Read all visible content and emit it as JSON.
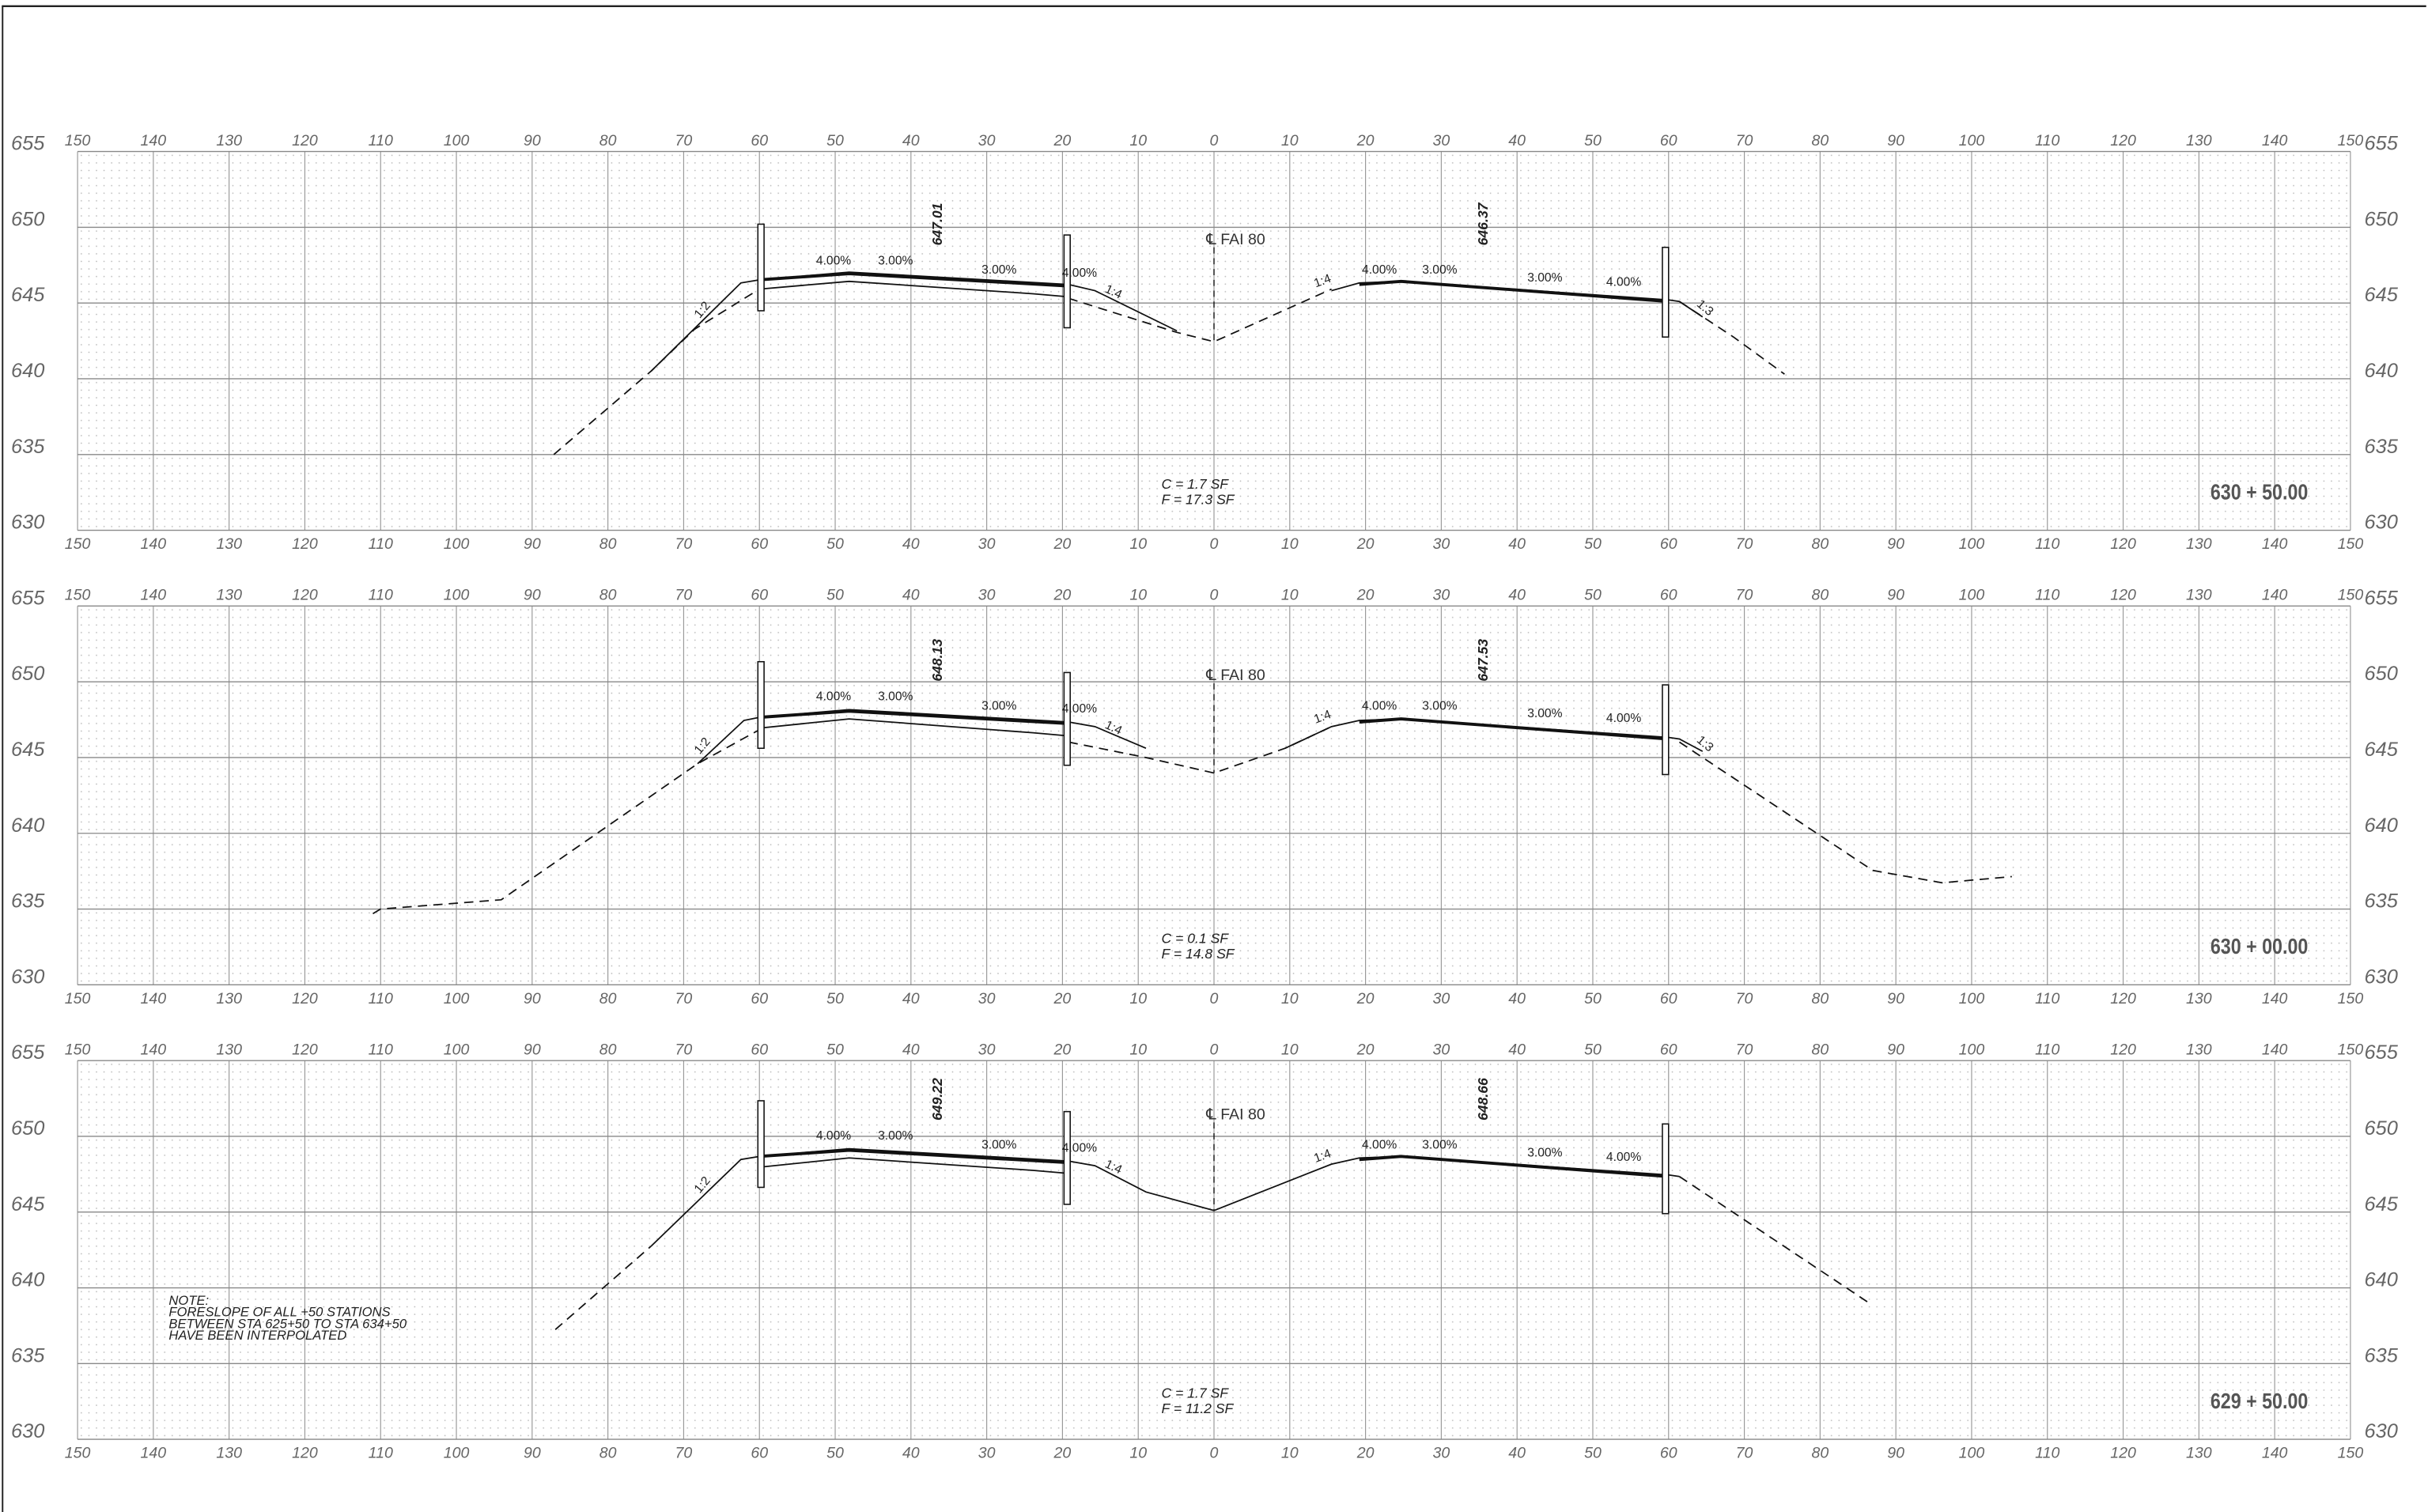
{
  "offset_labels": [
    150,
    140,
    130,
    120,
    110,
    100,
    90,
    80,
    70,
    60,
    50,
    40,
    30,
    20,
    10,
    0,
    10,
    20,
    30,
    40,
    50,
    60,
    70,
    80,
    90,
    100,
    110,
    120,
    130,
    140,
    150
  ],
  "elevation_labels": [
    655,
    650,
    645,
    640,
    635,
    630
  ],
  "sections": [
    {
      "station": "630 + 50.00",
      "centerline": "℄ FAI 80",
      "left_elevation": "647.01",
      "right_elevation": "646.37",
      "cut": "C = 1.7 SF",
      "fill": "F = 17.3 SF",
      "left_slopes": [
        "1:2",
        "4.00%",
        "3.00%",
        "3.00%",
        "4.00%",
        "1:4"
      ],
      "right_slopes": [
        "1:4",
        "4.00%",
        "3.00%",
        "3.00%",
        "4.00%",
        "1:3"
      ]
    },
    {
      "station": "630 + 00.00",
      "centerline": "℄ FAI 80",
      "left_elevation": "648.13",
      "right_elevation": "647.53",
      "cut": "C = 0.1 SF",
      "fill": "F = 14.8 SF",
      "left_slopes": [
        "1:2",
        "4.00%",
        "3.00%",
        "3.00%",
        "4.00%",
        "1:4"
      ],
      "right_slopes": [
        "1:4",
        "4.00%",
        "3.00%",
        "3.00%",
        "4.00%",
        "1:3"
      ]
    },
    {
      "station": "629 + 50.00",
      "centerline": "℄ FAI 80",
      "left_elevation": "649.22",
      "right_elevation": "648.66",
      "cut": "C = 1.7 SF",
      "fill": "F = 11.2 SF",
      "left_slopes": [
        "1:2",
        "4.00%",
        "3.00%",
        "3.00%",
        "4.00%",
        "1:4"
      ],
      "right_slopes": [
        "1:4",
        "4.00%",
        "3.00%",
        "3.00%",
        "4.00%"
      ],
      "note": [
        "NOTE:",
        "FORESLOPE OF ALL +50 STATIONS",
        "BETWEEN STA 625+50 TO STA 634+50",
        "HAVE BEEN INTERPOLATED"
      ]
    }
  ]
}
